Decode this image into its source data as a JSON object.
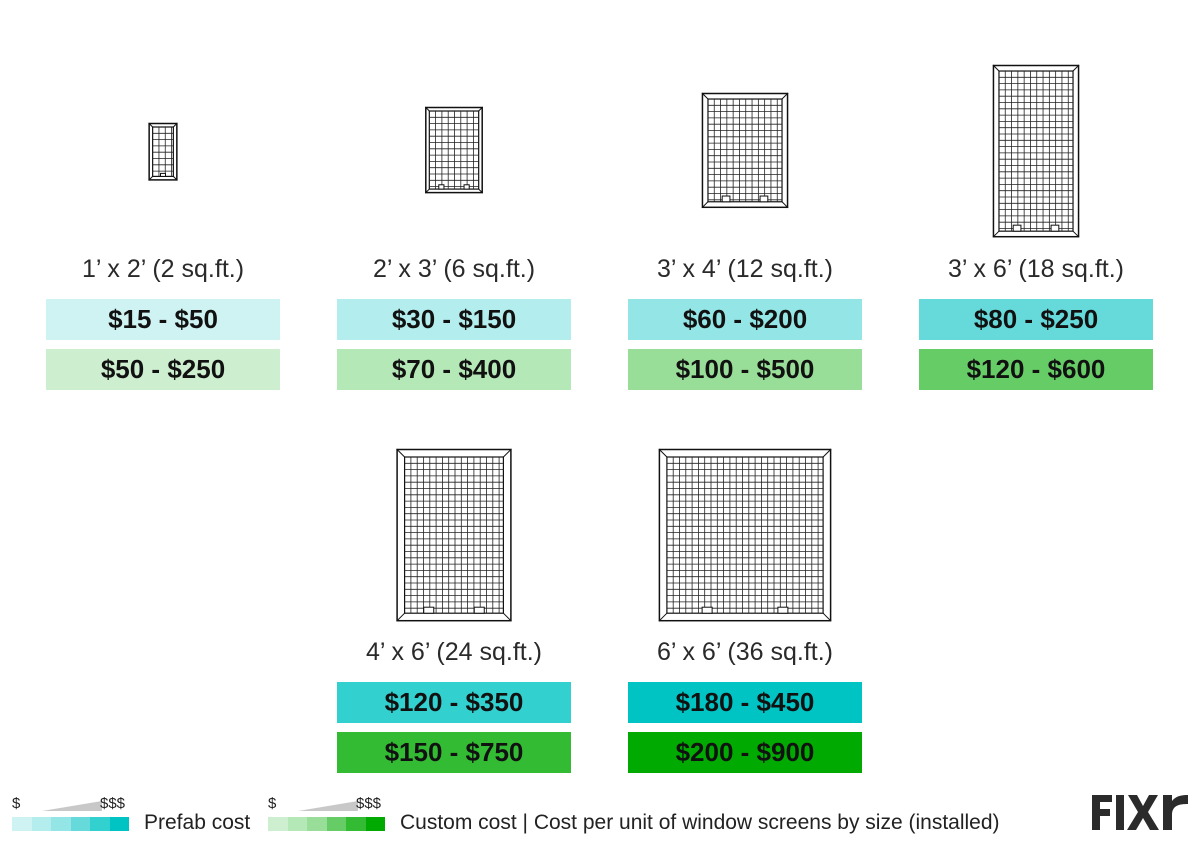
{
  "chart_data": {
    "type": "table",
    "title": "Cost per unit of window screens by size (installed)",
    "series": [
      {
        "name": "Prefab cost"
      },
      {
        "name": "Custom cost"
      }
    ],
    "sizes": [
      {
        "label": "1’ x 2’ (2 sq.ft.)",
        "width_ft": 1,
        "height_ft": 2,
        "prefab": "$15 - $50",
        "prefab_low": 15,
        "prefab_high": 50,
        "custom": "$50 - $250",
        "custom_low": 50,
        "custom_high": 250,
        "prefab_color": "#cff3f3",
        "custom_color": "#cdeecf"
      },
      {
        "label": "2’ x 3’ (6 sq.ft.)",
        "width_ft": 2,
        "height_ft": 3,
        "prefab": "$30 - $150",
        "prefab_low": 30,
        "prefab_high": 150,
        "custom": "$70 - $400",
        "custom_low": 70,
        "custom_high": 400,
        "prefab_color": "#b3eded",
        "custom_color": "#b4e8b6"
      },
      {
        "label": "3’ x 4’ (12 sq.ft.)",
        "width_ft": 3,
        "height_ft": 4,
        "prefab": "$60 - $200",
        "prefab_low": 60,
        "prefab_high": 200,
        "custom": "$100 - $500",
        "custom_low": 100,
        "custom_high": 500,
        "prefab_color": "#94e5e5",
        "custom_color": "#98dd98"
      },
      {
        "label": "3’ x 6’ (18 sq.ft.)",
        "width_ft": 3,
        "height_ft": 6,
        "prefab": "$80 - $250",
        "prefab_low": 80,
        "prefab_high": 250,
        "custom": "$120 - $600",
        "custom_low": 120,
        "custom_high": 600,
        "prefab_color": "#66dada",
        "custom_color": "#66cc66"
      },
      {
        "label": "4’ x 6’ (24 sq.ft.)",
        "width_ft": 4,
        "height_ft": 6,
        "prefab": "$120 - $350",
        "prefab_low": 120,
        "prefab_high": 350,
        "custom": "$150 - $750",
        "custom_low": 150,
        "custom_high": 750,
        "prefab_color": "#33d0d0",
        "custom_color": "#33bb33"
      },
      {
        "label": "6’ x 6’ (36 sq.ft.)",
        "width_ft": 6,
        "height_ft": 6,
        "prefab": "$180 - $450",
        "prefab_low": 180,
        "prefab_high": 450,
        "custom": "$200 - $900",
        "custom_low": 200,
        "custom_high": 900,
        "prefab_color": "#00c4c4",
        "custom_color": "#00aa00"
      }
    ]
  },
  "legend": {
    "prefab": {
      "low_symbol": "$",
      "high_symbol": "$$$",
      "label": "Prefab cost",
      "scale": [
        "#cff3f3",
        "#b3eded",
        "#94e5e5",
        "#66dada",
        "#33d0d0",
        "#00c4c4"
      ]
    },
    "custom": {
      "low_symbol": "$",
      "high_symbol": "$$$",
      "label": "Custom cost | Cost per unit of window screens by size (installed)",
      "scale": [
        "#cdeecf",
        "#b4e8b6",
        "#98dd98",
        "#66cc66",
        "#33bb33",
        "#00aa00"
      ]
    }
  },
  "brand": {
    "logo_text": "FIXR",
    "color": "#2b2b2b"
  }
}
